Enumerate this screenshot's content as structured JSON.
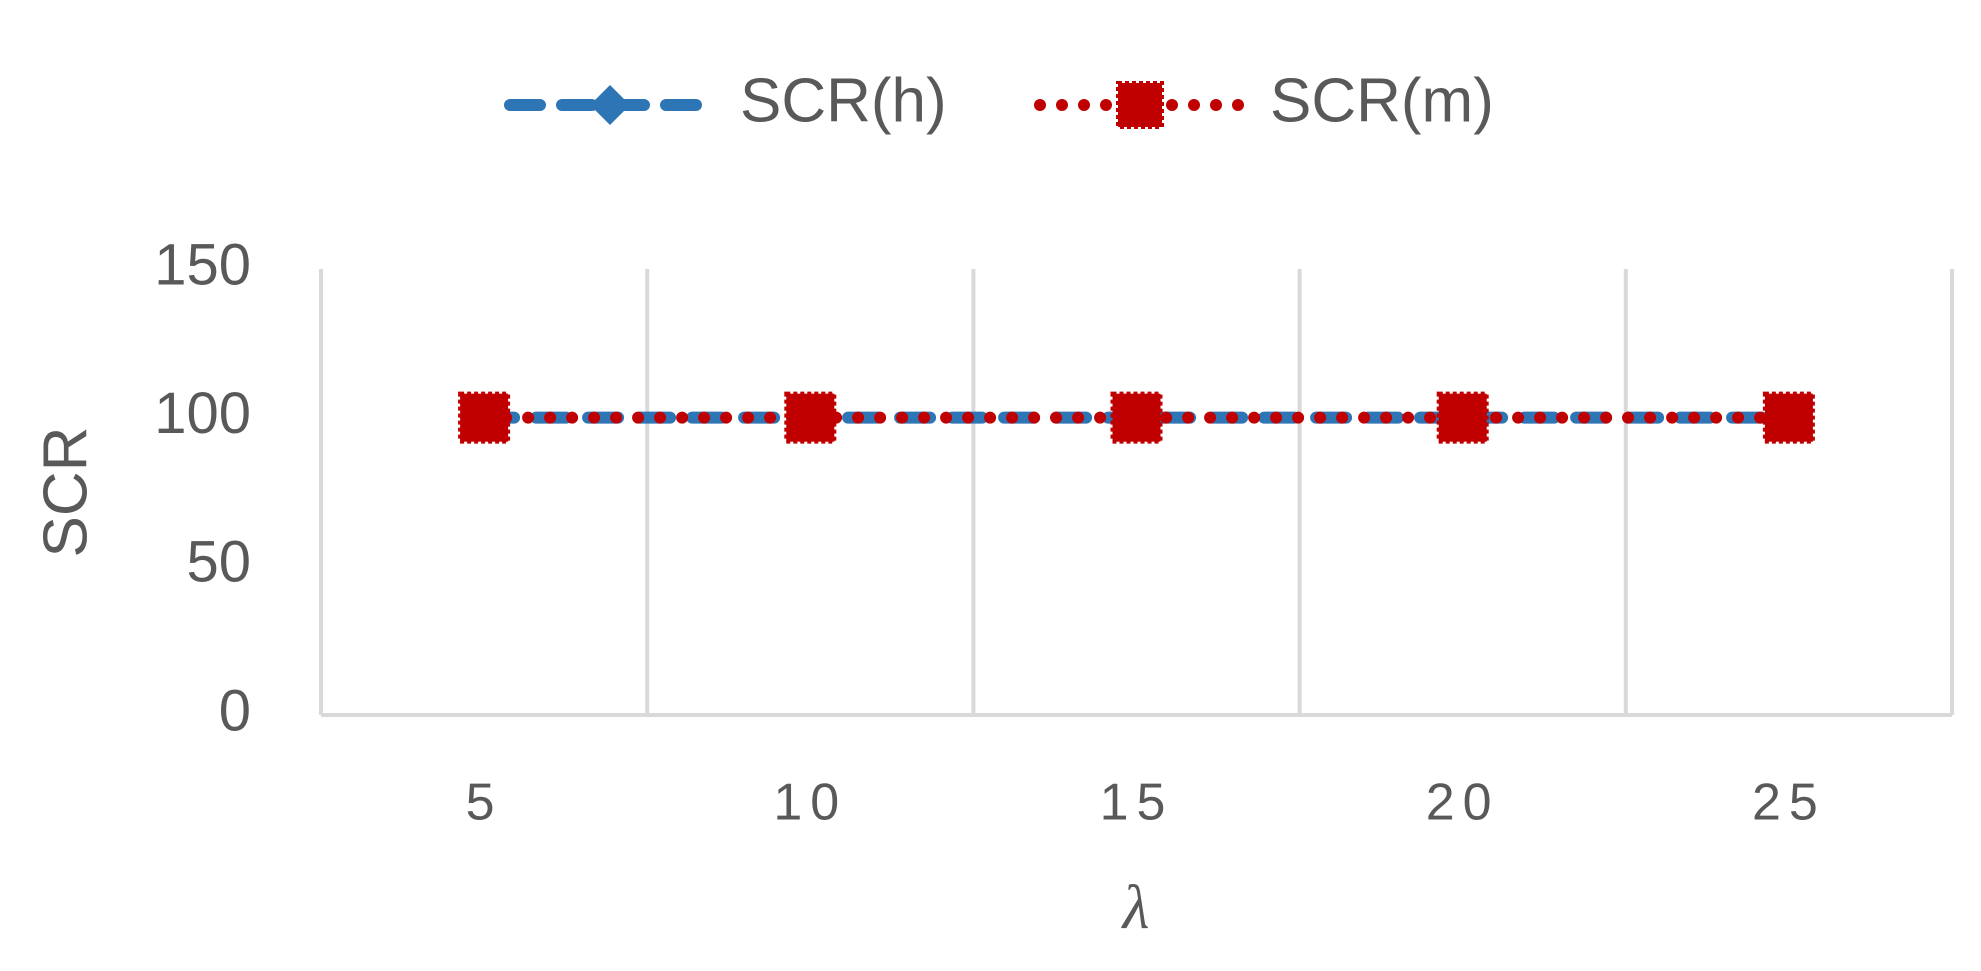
{
  "chart_data": {
    "type": "line",
    "categories": [
      "5",
      "10",
      "15",
      "20",
      "25"
    ],
    "series": [
      {
        "name": "SCR(h)",
        "color": "#2e75b6",
        "values": [
          100,
          100,
          100,
          100,
          100
        ]
      },
      {
        "name": "SCR(m)",
        "color": "#c00000",
        "values": [
          100,
          100,
          100,
          100,
          100
        ]
      }
    ],
    "xlabel": "λ",
    "ylabel": "SCR",
    "ylim": [
      0,
      150
    ],
    "yticks": [
      0,
      50,
      100,
      150
    ],
    "legend": "top"
  }
}
